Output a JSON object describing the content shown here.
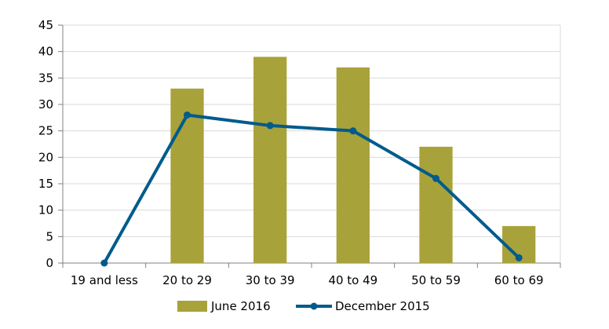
{
  "chart_data": {
    "type": "bar",
    "categories": [
      "19 and less",
      "20 to 29",
      "30 to 39",
      "40 to 49",
      "50 to 59",
      "60 to 69"
    ],
    "ylim": [
      0,
      45
    ],
    "yticks": [
      0,
      5,
      10,
      15,
      20,
      25,
      30,
      35,
      40,
      45
    ],
    "grid": true,
    "legend_position": "bottom",
    "series": [
      {
        "name": "June 2016",
        "type": "bar",
        "color": "#a8a23a",
        "values": [
          0,
          33,
          39,
          37,
          22,
          7
        ]
      },
      {
        "name": "December 2015",
        "type": "line",
        "color": "#005b8c",
        "values": [
          0,
          28,
          26,
          25,
          16,
          1
        ]
      }
    ]
  }
}
